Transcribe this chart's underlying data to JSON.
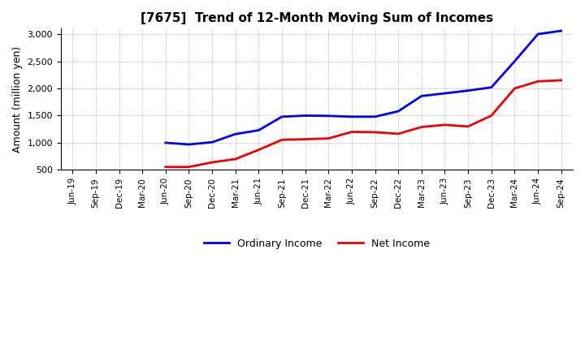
{
  "title": "[7675]  Trend of 12-Month Moving Sum of Incomes",
  "ylabel": "Amount (million yen)",
  "background_color": "#ffffff",
  "plot_background_color": "#ffffff",
  "grid_color": "#999999",
  "ordinary_income_color": "#0000ee",
  "net_income_color": "#ee0000",
  "ordinary_income_label": "Ordinary Income",
  "net_income_label": "Net Income",
  "ylim": [
    500,
    3100
  ],
  "yticks": [
    500,
    1000,
    1500,
    2000,
    2500,
    3000
  ],
  "x_labels": [
    "Jun-19",
    "Sep-19",
    "Dec-19",
    "Mar-20",
    "Jun-20",
    "Sep-20",
    "Dec-20",
    "Mar-21",
    "Jun-21",
    "Sep-21",
    "Dec-21",
    "Mar-22",
    "Jun-22",
    "Sep-22",
    "Dec-22",
    "Mar-23",
    "Jun-23",
    "Sep-23",
    "Dec-23",
    "Mar-24",
    "Jun-24",
    "Sep-24"
  ],
  "ordinary_income": [
    null,
    null,
    null,
    null,
    1000,
    970,
    1010,
    1160,
    1230,
    1480,
    1500,
    1495,
    1480,
    1480,
    1580,
    1860,
    1910,
    1960,
    2020,
    2500,
    3000,
    3060
  ],
  "net_income": [
    null,
    null,
    null,
    null,
    555,
    555,
    640,
    700,
    870,
    1055,
    1065,
    1080,
    1200,
    1195,
    1165,
    1290,
    1330,
    1300,
    1500,
    2000,
    2130,
    2150
  ]
}
